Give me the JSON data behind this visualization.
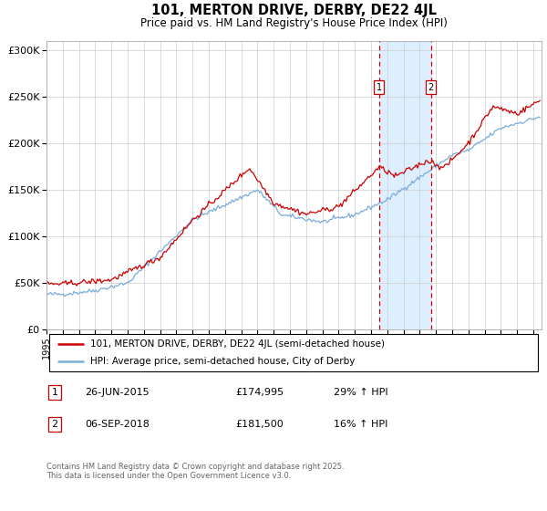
{
  "title": "101, MERTON DRIVE, DERBY, DE22 4JL",
  "subtitle": "Price paid vs. HM Land Registry's House Price Index (HPI)",
  "ylim": [
    0,
    310000
  ],
  "yticks": [
    0,
    50000,
    100000,
    150000,
    200000,
    250000,
    300000
  ],
  "ytick_labels": [
    "£0",
    "£50K",
    "£100K",
    "£150K",
    "£200K",
    "£250K",
    "£300K"
  ],
  "legend_line1": "101, MERTON DRIVE, DERBY, DE22 4JL (semi-detached house)",
  "legend_line2": "HPI: Average price, semi-detached house, City of Derby",
  "annotation1_label": "1",
  "annotation1_date": "26-JUN-2015",
  "annotation1_price": "£174,995",
  "annotation1_hpi": "29% ↑ HPI",
  "annotation2_label": "2",
  "annotation2_date": "06-SEP-2018",
  "annotation2_price": "£181,500",
  "annotation2_hpi": "16% ↑ HPI",
  "footnote": "Contains HM Land Registry data © Crown copyright and database right 2025.\nThis data is licensed under the Open Government Licence v3.0.",
  "red_color": "#cc0000",
  "blue_color": "#7aadda",
  "shaded_color": "#ddeeff",
  "marker1_x": 2015.49,
  "marker2_x": 2018.68,
  "grid_color": "#cccccc"
}
